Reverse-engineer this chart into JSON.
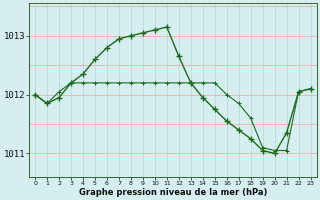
{
  "background_color": "#d6eef0",
  "grid_color_h": "#f0a0a0",
  "grid_color_v": "#a8d8d8",
  "line1_y": [
    1012.0,
    1011.85,
    1011.95,
    1012.2,
    1012.35,
    1012.6,
    1012.8,
    1012.95,
    1013.0,
    1013.05,
    1013.1,
    1013.15,
    1012.65,
    1012.2,
    1011.95,
    1011.75,
    1011.55,
    1011.4,
    1011.25,
    1011.05,
    1011.0,
    1011.35,
    1012.05,
    1012.1
  ],
  "line2_y": [
    1012.0,
    1011.85,
    1012.05,
    1012.2,
    1012.2,
    1012.2,
    1012.2,
    1012.2,
    1012.2,
    1012.2,
    1012.2,
    1012.2,
    1012.2,
    1012.2,
    1012.2,
    1012.2,
    1012.0,
    1011.85,
    1011.6,
    1011.1,
    1011.05,
    1011.05,
    1012.05,
    1012.1
  ],
  "line_color": "#1a6b1a",
  "xlim": [
    -0.5,
    23.5
  ],
  "ylim": [
    1010.6,
    1013.55
  ],
  "yticks": [
    1011,
    1012,
    1013
  ],
  "xticks": [
    0,
    1,
    2,
    3,
    4,
    5,
    6,
    7,
    8,
    9,
    10,
    11,
    12,
    13,
    14,
    15,
    16,
    17,
    18,
    19,
    20,
    21,
    22,
    23
  ],
  "xlabel": "Graphe pression niveau de la mer (hPa)",
  "markersize": 3.5,
  "lw1": 1.0,
  "lw2": 0.8
}
